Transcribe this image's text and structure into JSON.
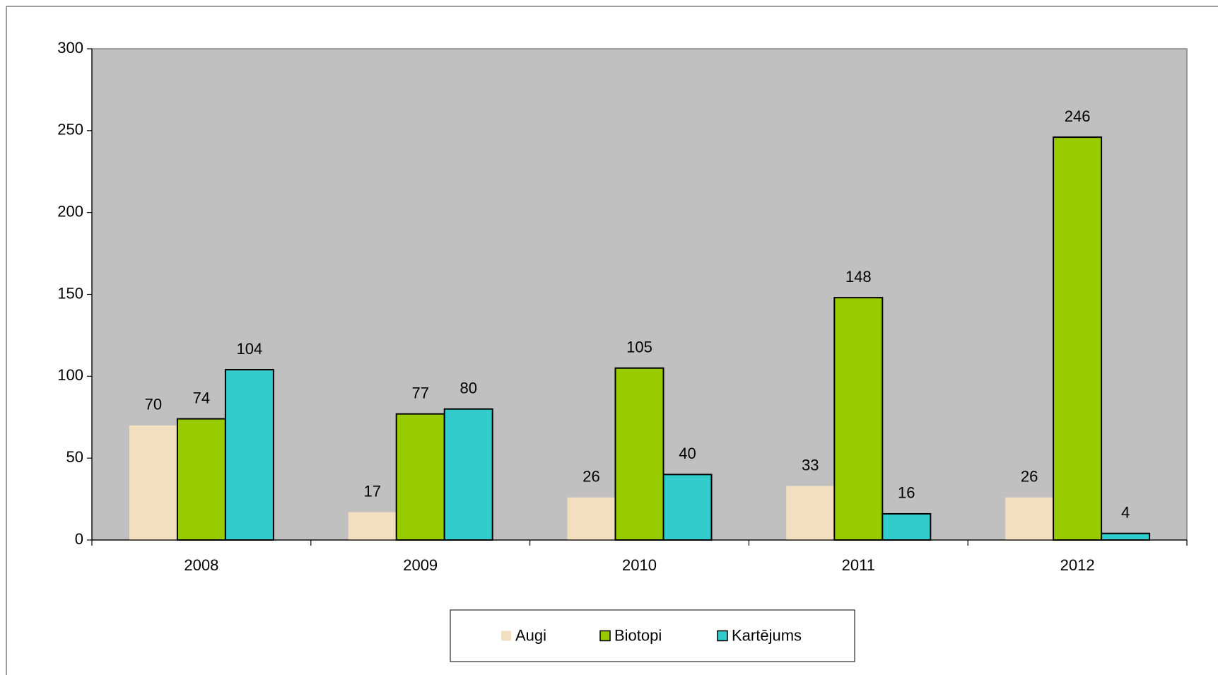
{
  "chart_data": {
    "type": "bar",
    "categories": [
      "2008",
      "2009",
      "2010",
      "2011",
      "2012"
    ],
    "series": [
      {
        "name": "Augi",
        "color": "#f2dfc0",
        "values": [
          70,
          17,
          26,
          33,
          26
        ]
      },
      {
        "name": "Biotopi",
        "color": "#99cc00",
        "values": [
          74,
          77,
          105,
          148,
          246
        ]
      },
      {
        "name": "Kartējums",
        "color": "#33cccc",
        "values": [
          104,
          80,
          40,
          16,
          4
        ]
      }
    ],
    "ylim": [
      0,
      300
    ],
    "yticks": [
      0,
      50,
      100,
      150,
      200,
      250,
      300
    ],
    "plot_background": "#c0c0c0",
    "legend": "bottom"
  }
}
